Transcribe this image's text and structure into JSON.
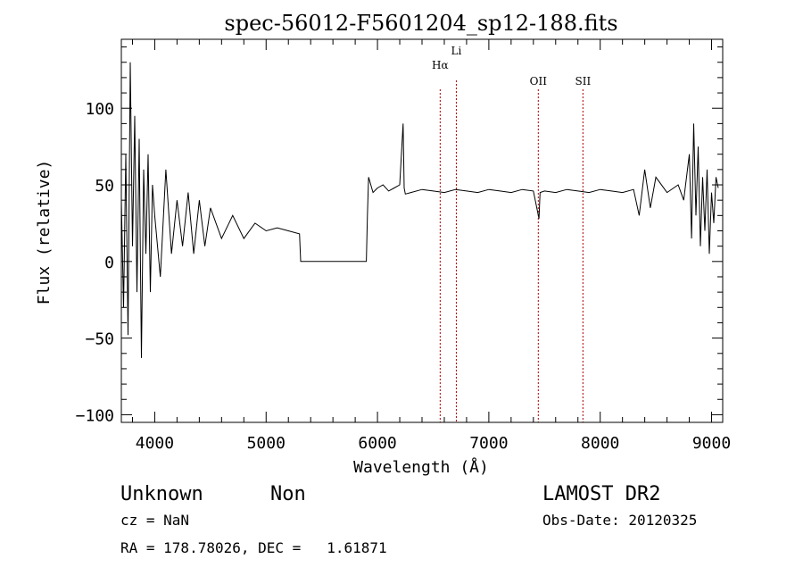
{
  "chart_data": {
    "type": "line",
    "title": "spec-56012-F5601204_sp12-188.fits",
    "xlabel": "Wavelength (Å)",
    "ylabel": "Flux (relative)",
    "xlim": [
      3700,
      9100
    ],
    "ylim": [
      -105,
      145
    ],
    "x_ticks": [
      4000,
      5000,
      6000,
      7000,
      8000,
      9000
    ],
    "y_ticks": [
      -100,
      -50,
      0,
      50,
      100
    ],
    "grid": false,
    "lines": [
      {
        "label": "Hα",
        "wavelength": 6563
      },
      {
        "label": "Li",
        "wavelength": 6708
      },
      {
        "label": "OII",
        "wavelength": 7444
      },
      {
        "label": "SII",
        "wavelength": 7845
      }
    ],
    "series": [
      {
        "x": [
          3700,
          3720,
          3740,
          3760,
          3780,
          3800,
          3820,
          3840,
          3860,
          3880,
          3900,
          3920,
          3940,
          3960,
          3980,
          4000,
          4050,
          4100,
          4150,
          4200,
          4250,
          4300,
          4350,
          4400,
          4450,
          4500,
          4600,
          4700,
          4800,
          4900,
          5000,
          5100,
          5200,
          5300,
          5310,
          5320,
          5900,
          5910,
          5920,
          5940,
          5960,
          6000,
          6050,
          6100,
          6150,
          6200,
          6230,
          6240,
          6250,
          6300,
          6400,
          6500,
          6600,
          6700,
          6800,
          6900,
          7000,
          7100,
          7200,
          7300,
          7400,
          7450,
          7460,
          7500,
          7600,
          7700,
          7800,
          7900,
          8000,
          8100,
          8200,
          8300,
          8350,
          8400,
          8450,
          8500,
          8600,
          8700,
          8750,
          8800,
          8820,
          8840,
          8860,
          8880,
          8900,
          8920,
          8940,
          8960,
          8980,
          9000,
          9020,
          9040,
          9060
        ],
        "y": [
          40,
          -30,
          70,
          -48,
          130,
          10,
          95,
          -20,
          80,
          -63,
          60,
          5,
          70,
          -20,
          50,
          30,
          -10,
          60,
          5,
          40,
          10,
          45,
          5,
          40,
          10,
          35,
          15,
          30,
          15,
          25,
          20,
          22,
          20,
          18,
          0,
          0,
          0,
          30,
          55,
          50,
          45,
          48,
          50,
          46,
          48,
          50,
          90,
          48,
          44,
          45,
          47,
          46,
          45,
          47,
          46,
          45,
          47,
          46,
          45,
          47,
          46,
          28,
          45,
          46,
          45,
          47,
          46,
          45,
          47,
          46,
          45,
          47,
          30,
          60,
          35,
          55,
          45,
          50,
          40,
          70,
          15,
          90,
          30,
          75,
          10,
          55,
          20,
          60,
          5,
          45,
          25,
          55,
          48
        ]
      }
    ],
    "annotations": {
      "object_class": "Unknown",
      "object_subclass": "Non",
      "survey": "LAMOST DR2",
      "cz": "cz = NaN",
      "obs_date": "Obs-Date: 20120325",
      "coords": "RA = 178.78026, DEC =   1.61871"
    }
  }
}
